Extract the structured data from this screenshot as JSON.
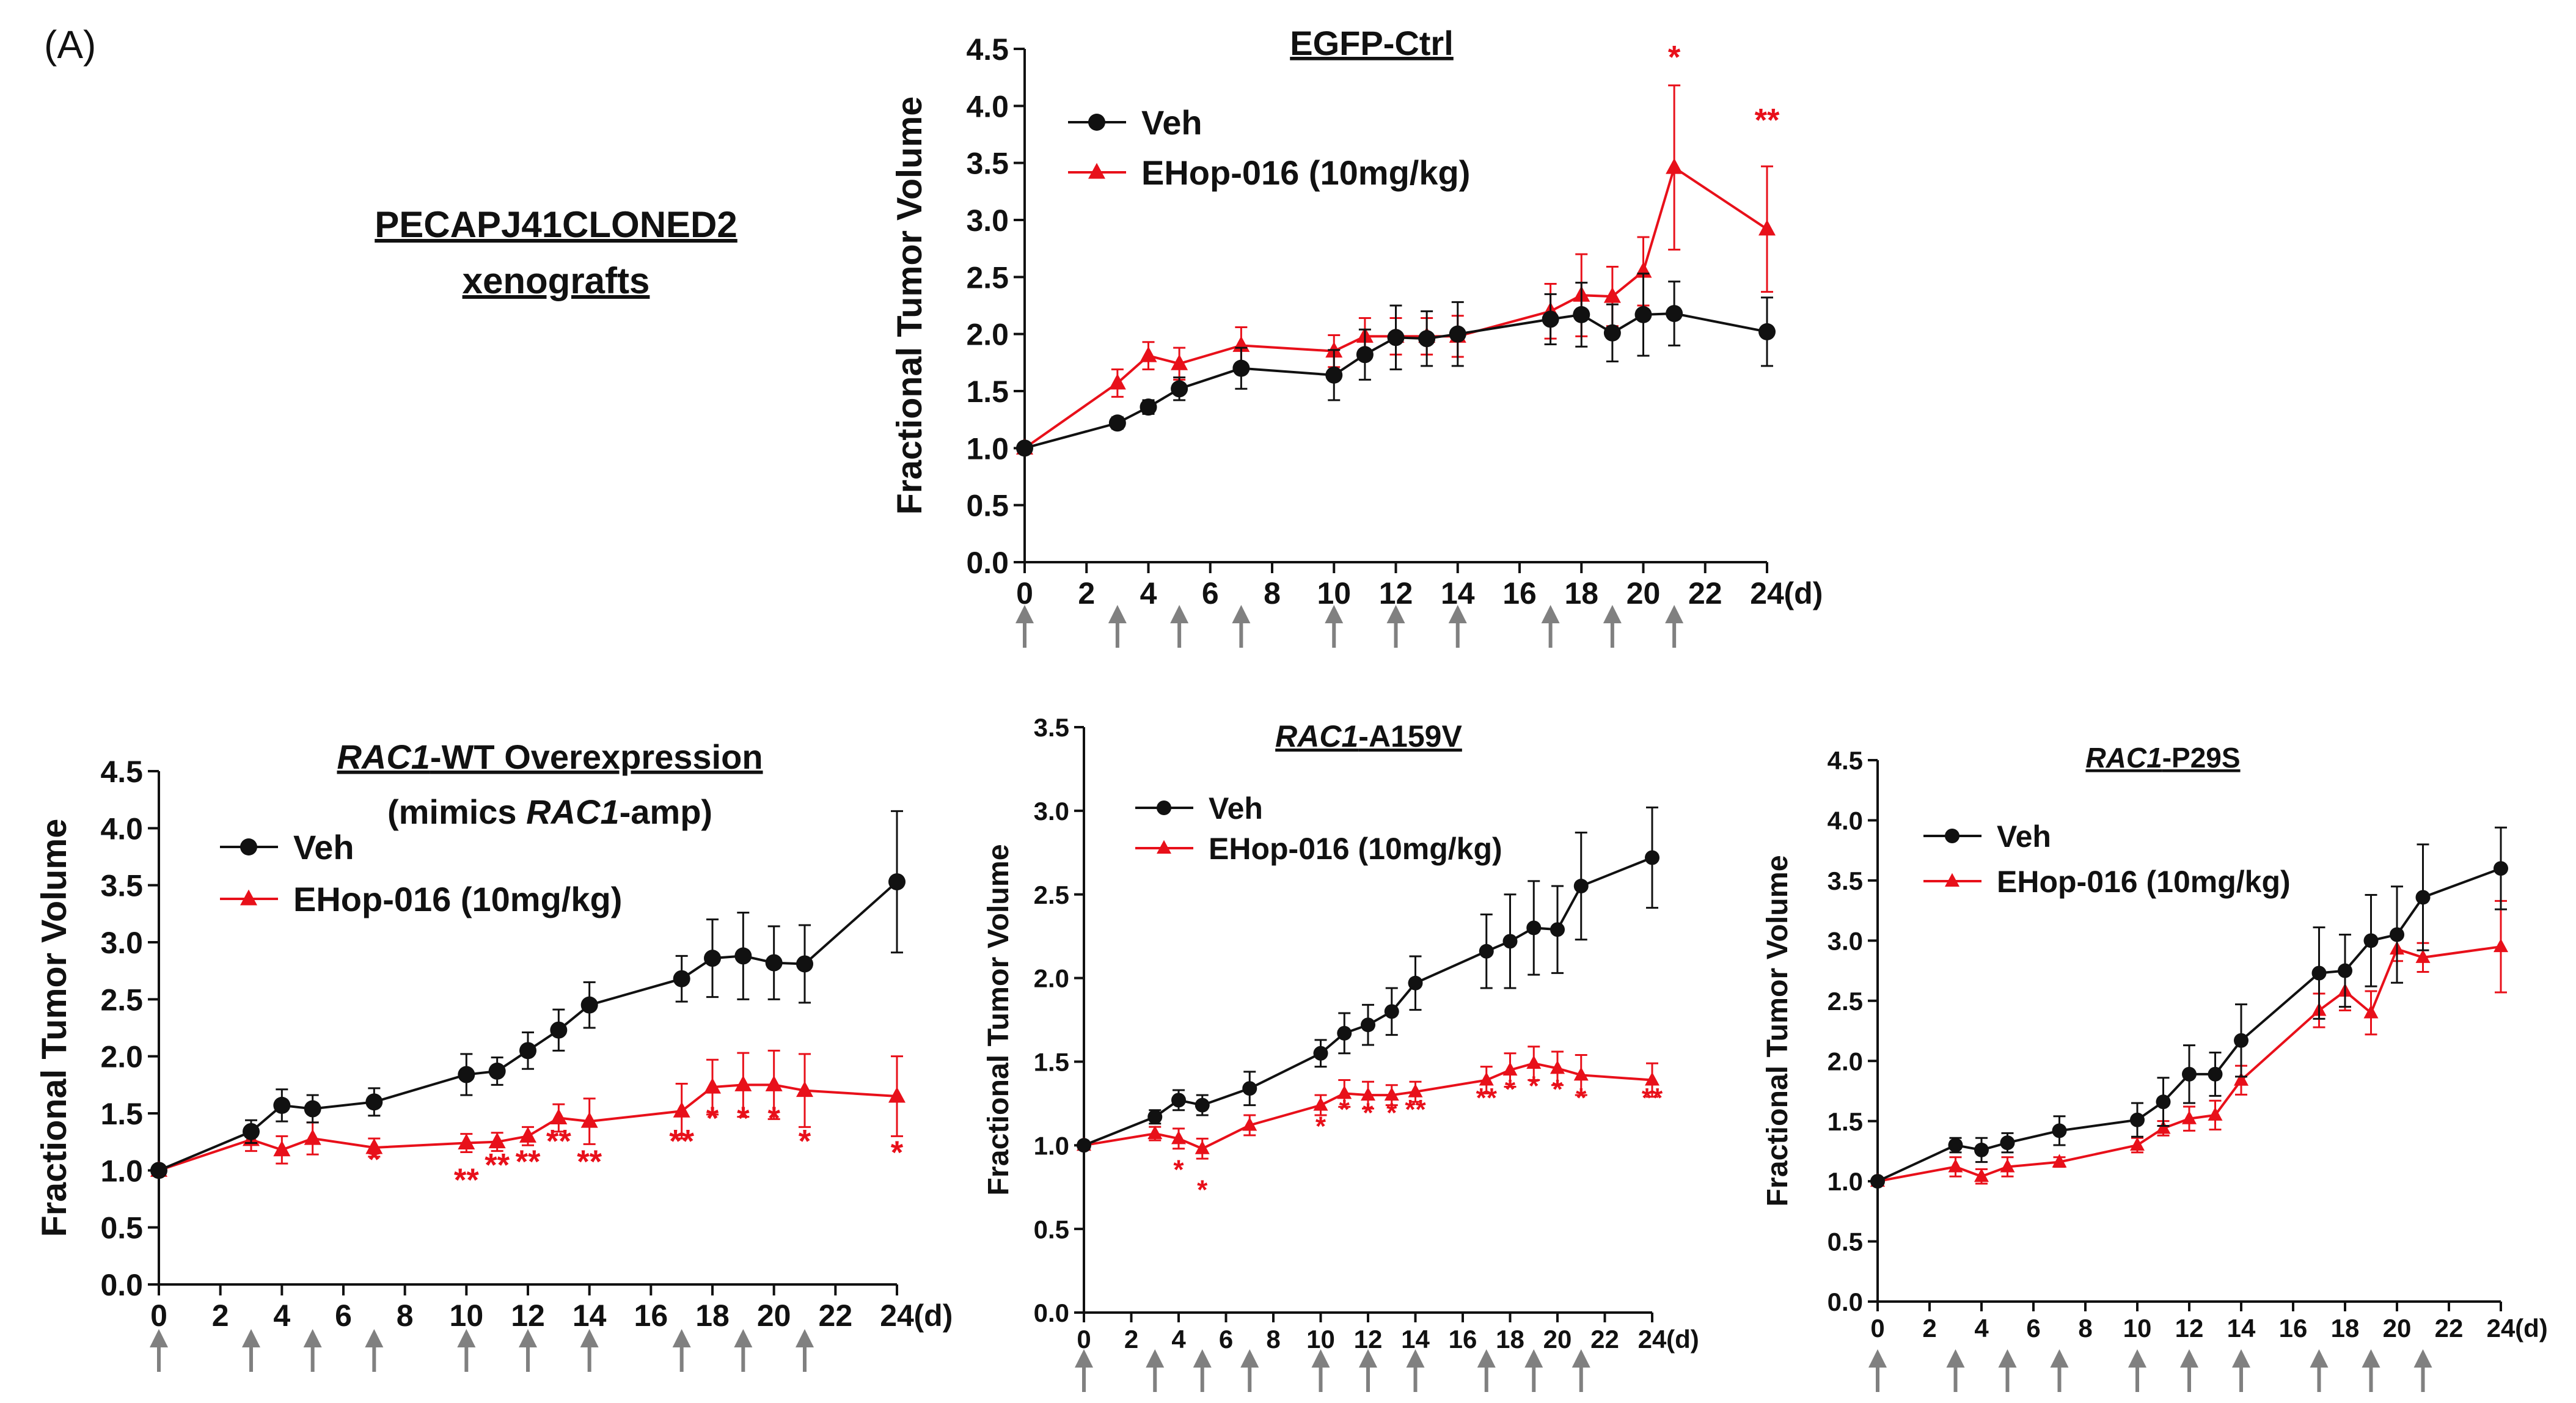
{
  "figure": {
    "panel_label": "(A)",
    "heading_line1": "PECAPJ41CLONED2",
    "heading_line2": "xenografts"
  },
  "colors": {
    "veh": "#111111",
    "ehop": "#e8101a",
    "arrow": "#808080"
  },
  "chart_data": [
    {
      "id": "egfp",
      "type": "line",
      "title": "EGFP-Ctrl",
      "title_italic": "",
      "title_rest": "EGFP-Ctrl",
      "subtitle": "",
      "xlabel": "(d)",
      "ylabel": "Fractional Tumor Volume",
      "xlim": [
        0,
        24
      ],
      "ylim": [
        0,
        4.5
      ],
      "xticks": [
        0,
        2,
        4,
        6,
        8,
        10,
        12,
        14,
        16,
        18,
        20,
        22,
        24
      ],
      "yticks": [
        "0.0",
        "0.5",
        "1.0",
        "1.5",
        "2.0",
        "2.5",
        "3.0",
        "3.5",
        "4.0",
        "4.5"
      ],
      "dosing_days": [
        0,
        3,
        5,
        7,
        10,
        12,
        14,
        17,
        19,
        21
      ],
      "legend": [
        "Veh",
        "EHop-016 (10mg/kg)"
      ],
      "series": [
        {
          "name": "Veh",
          "x": [
            0,
            3,
            4,
            5,
            7,
            10,
            11,
            12,
            13,
            14,
            17,
            18,
            19,
            20,
            21,
            24
          ],
          "values": [
            1.0,
            1.22,
            1.36,
            1.52,
            1.7,
            1.64,
            1.82,
            1.97,
            1.96,
            2.0,
            2.13,
            2.17,
            2.01,
            2.17,
            2.18,
            2.02
          ],
          "err": [
            0.0,
            0.05,
            0.06,
            0.1,
            0.18,
            0.22,
            0.22,
            0.28,
            0.24,
            0.28,
            0.22,
            0.28,
            0.25,
            0.36,
            0.28,
            0.3
          ]
        },
        {
          "name": "EHop-016 (10mg/kg)",
          "x": [
            0,
            3,
            4,
            5,
            7,
            10,
            11,
            12,
            13,
            14,
            17,
            18,
            19,
            20,
            21,
            24
          ],
          "values": [
            1.0,
            1.57,
            1.81,
            1.74,
            1.9,
            1.85,
            1.98,
            1.98,
            1.98,
            1.98,
            2.2,
            2.34,
            2.33,
            2.55,
            3.46,
            2.92
          ],
          "err": [
            0.0,
            0.12,
            0.12,
            0.14,
            0.16,
            0.14,
            0.16,
            0.16,
            0.16,
            0.18,
            0.24,
            0.36,
            0.26,
            0.3,
            0.72,
            0.55
          ]
        }
      ],
      "significance": [
        {
          "x": 21,
          "y": 4.33,
          "text": "*"
        },
        {
          "x": 24,
          "y": 3.78,
          "text": "**"
        }
      ]
    },
    {
      "id": "rac1wt",
      "type": "line",
      "title": "RAC1-WT Overexpression",
      "title_italic": "RAC1",
      "title_rest": "-WT Overexpression",
      "subtitle": "(mimics RAC1-amp)",
      "subtitle_pre": "(mimics ",
      "subtitle_italic": "RAC1",
      "subtitle_post": "-amp)",
      "xlabel": "(d)",
      "ylabel": "Fractional Tumor Volume",
      "xlim": [
        0,
        24
      ],
      "ylim": [
        0,
        4.5
      ],
      "xticks": [
        0,
        2,
        4,
        6,
        8,
        10,
        12,
        14,
        16,
        18,
        20,
        22,
        24
      ],
      "yticks": [
        "0.0",
        "0.5",
        "1.0",
        "1.5",
        "2.0",
        "2.5",
        "3.0",
        "3.5",
        "4.0",
        "4.5"
      ],
      "dosing_days": [
        0,
        3,
        5,
        7,
        10,
        12,
        14,
        17,
        19,
        21
      ],
      "legend": [
        "Veh",
        "EHop-016 (10mg/kg)"
      ],
      "series": [
        {
          "name": "Veh",
          "x": [
            0,
            3,
            4,
            5,
            7,
            10,
            11,
            12,
            13,
            14,
            17,
            18,
            19,
            20,
            21,
            24
          ],
          "values": [
            1.0,
            1.34,
            1.57,
            1.54,
            1.6,
            1.84,
            1.87,
            2.05,
            2.23,
            2.45,
            2.68,
            2.86,
            2.88,
            2.82,
            2.81,
            3.53
          ],
          "err": [
            0.0,
            0.1,
            0.14,
            0.12,
            0.12,
            0.18,
            0.12,
            0.16,
            0.18,
            0.2,
            0.2,
            0.34,
            0.38,
            0.32,
            0.34,
            0.62
          ]
        },
        {
          "name": "EHop-016 (10mg/kg)",
          "x": [
            0,
            3,
            4,
            5,
            7,
            10,
            11,
            12,
            13,
            14,
            17,
            18,
            19,
            20,
            21,
            24
          ],
          "values": [
            1.0,
            1.27,
            1.18,
            1.28,
            1.2,
            1.24,
            1.25,
            1.3,
            1.46,
            1.43,
            1.52,
            1.73,
            1.75,
            1.75,
            1.7,
            1.65
          ],
          "err": [
            0.0,
            0.1,
            0.12,
            0.14,
            0.08,
            0.08,
            0.08,
            0.08,
            0.12,
            0.2,
            0.24,
            0.24,
            0.28,
            0.3,
            0.32,
            0.35
          ]
        }
      ],
      "significance": [
        {
          "x": 7,
          "y": 1.0,
          "text": "*"
        },
        {
          "x": 10,
          "y": 0.82,
          "text": "**"
        },
        {
          "x": 11,
          "y": 0.95,
          "text": "**"
        },
        {
          "x": 12,
          "y": 0.98,
          "text": "**"
        },
        {
          "x": 13,
          "y": 1.16,
          "text": "**"
        },
        {
          "x": 14,
          "y": 0.98,
          "text": "**"
        },
        {
          "x": 17,
          "y": 1.16,
          "text": "**"
        },
        {
          "x": 18,
          "y": 1.36,
          "text": "*"
        },
        {
          "x": 19,
          "y": 1.36,
          "text": "*"
        },
        {
          "x": 20,
          "y": 1.36,
          "text": "*"
        },
        {
          "x": 21,
          "y": 1.16,
          "text": "*"
        },
        {
          "x": 24,
          "y": 1.06,
          "text": "*"
        }
      ]
    },
    {
      "id": "a159v",
      "type": "line",
      "title": "RAC1-A159V",
      "title_italic": "RAC1",
      "title_rest": "-A159V",
      "subtitle": "",
      "xlabel": "(d)",
      "ylabel": "Fractional Tumor Volume",
      "xlim": [
        0,
        24
      ],
      "ylim": [
        0,
        3.5
      ],
      "xticks": [
        0,
        2,
        4,
        6,
        8,
        10,
        12,
        14,
        16,
        18,
        20,
        22,
        24
      ],
      "yticks": [
        "0.0",
        "0.5",
        "1.0",
        "1.5",
        "2.0",
        "2.5",
        "3.0",
        "3.5"
      ],
      "dosing_days": [
        0,
        3,
        5,
        7,
        10,
        12,
        14,
        17,
        19,
        21
      ],
      "legend": [
        "Veh",
        "EHop-016 (10mg/kg)"
      ],
      "series": [
        {
          "name": "Veh",
          "x": [
            0,
            3,
            4,
            5,
            7,
            10,
            11,
            12,
            13,
            14,
            17,
            18,
            19,
            20,
            21,
            24
          ],
          "values": [
            1.0,
            1.17,
            1.27,
            1.24,
            1.34,
            1.55,
            1.67,
            1.72,
            1.8,
            1.97,
            2.16,
            2.22,
            2.3,
            2.29,
            2.55,
            2.72
          ],
          "err": [
            0.0,
            0.04,
            0.06,
            0.06,
            0.1,
            0.08,
            0.12,
            0.12,
            0.14,
            0.16,
            0.22,
            0.28,
            0.28,
            0.26,
            0.32,
            0.3
          ]
        },
        {
          "name": "EHop-016 (10mg/kg)",
          "x": [
            0,
            3,
            4,
            5,
            7,
            10,
            11,
            12,
            13,
            14,
            17,
            18,
            19,
            20,
            21,
            24
          ],
          "values": [
            1.0,
            1.07,
            1.04,
            0.98,
            1.12,
            1.24,
            1.31,
            1.3,
            1.3,
            1.32,
            1.39,
            1.45,
            1.49,
            1.46,
            1.42,
            1.39
          ],
          "err": [
            0.0,
            0.04,
            0.06,
            0.06,
            0.06,
            0.06,
            0.08,
            0.08,
            0.06,
            0.06,
            0.08,
            0.1,
            0.1,
            0.1,
            0.12,
            0.1
          ]
        }
      ],
      "significance": [
        {
          "x": 4,
          "y": 0.8,
          "text": "*"
        },
        {
          "x": 5,
          "y": 0.68,
          "text": "*"
        },
        {
          "x": 10,
          "y": 1.06,
          "text": "*"
        },
        {
          "x": 11,
          "y": 1.16,
          "text": "*"
        },
        {
          "x": 12,
          "y": 1.14,
          "text": "*"
        },
        {
          "x": 13,
          "y": 1.14,
          "text": "*"
        },
        {
          "x": 14,
          "y": 1.16,
          "text": "**"
        },
        {
          "x": 17,
          "y": 1.23,
          "text": "**"
        },
        {
          "x": 18,
          "y": 1.28,
          "text": "*"
        },
        {
          "x": 19,
          "y": 1.3,
          "text": "*"
        },
        {
          "x": 20,
          "y": 1.28,
          "text": "*"
        },
        {
          "x": 21,
          "y": 1.23,
          "text": "*"
        },
        {
          "x": 24,
          "y": 1.23,
          "text": "**"
        }
      ]
    },
    {
      "id": "p29s",
      "type": "line",
      "title": "RAC1-P29S",
      "title_italic": "RAC1",
      "title_rest": "-P29S",
      "subtitle": "",
      "xlabel": "(d)",
      "ylabel": "Fractional Tumor Volume",
      "xlim": [
        0,
        24
      ],
      "ylim": [
        0,
        4.5
      ],
      "xticks": [
        0,
        2,
        4,
        6,
        8,
        10,
        12,
        14,
        16,
        18,
        20,
        22,
        24
      ],
      "yticks": [
        "0.0",
        "0.5",
        "1.0",
        "1.5",
        "2.0",
        "2.5",
        "3.0",
        "3.5",
        "4.0",
        "4.5"
      ],
      "dosing_days": [
        0,
        3,
        5,
        7,
        10,
        12,
        14,
        17,
        19,
        21
      ],
      "legend": [
        "Veh",
        "EHop-016 (10mg/kg)"
      ],
      "series": [
        {
          "name": "Veh",
          "x": [
            0,
            3,
            4,
            5,
            7,
            10,
            11,
            12,
            13,
            14,
            17,
            18,
            19,
            20,
            21,
            24
          ],
          "values": [
            1.0,
            1.3,
            1.26,
            1.32,
            1.42,
            1.51,
            1.66,
            1.89,
            1.89,
            2.17,
            2.73,
            2.75,
            3.0,
            3.05,
            3.36,
            3.6
          ],
          "err": [
            0.0,
            0.06,
            0.1,
            0.08,
            0.12,
            0.14,
            0.2,
            0.24,
            0.18,
            0.3,
            0.38,
            0.3,
            0.38,
            0.4,
            0.44,
            0.34
          ]
        },
        {
          "name": "EHop-016 (10mg/kg)",
          "x": [
            0,
            3,
            4,
            5,
            7,
            10,
            11,
            12,
            13,
            14,
            17,
            18,
            19,
            20,
            21,
            24
          ],
          "values": [
            1.0,
            1.12,
            1.04,
            1.12,
            1.16,
            1.3,
            1.44,
            1.52,
            1.55,
            1.84,
            2.42,
            2.58,
            2.4,
            2.93,
            2.86,
            2.95
          ],
          "err": [
            0.0,
            0.08,
            0.06,
            0.08,
            0.04,
            0.06,
            0.06,
            0.1,
            0.12,
            0.12,
            0.14,
            0.16,
            0.18,
            0.1,
            0.12,
            0.38
          ]
        }
      ],
      "significance": []
    }
  ]
}
